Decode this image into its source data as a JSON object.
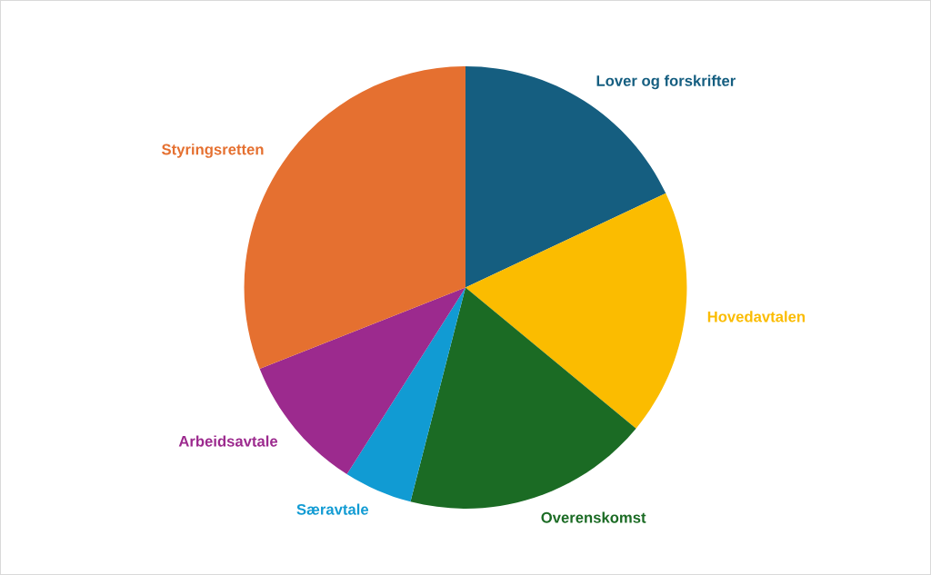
{
  "chart_data": {
    "type": "pie",
    "categories": [
      "Lover og forskrifter",
      "Hovedavtalen",
      "Overenskomst",
      "Særavtale",
      "Arbeidsavtale",
      "Styringsretten"
    ],
    "values": [
      18,
      18,
      18,
      5,
      10,
      31
    ],
    "colors": [
      "#155e80",
      "#fbbc00",
      "#1b6b24",
      "#119bd3",
      "#9c2a8e",
      "#e57030"
    ]
  }
}
